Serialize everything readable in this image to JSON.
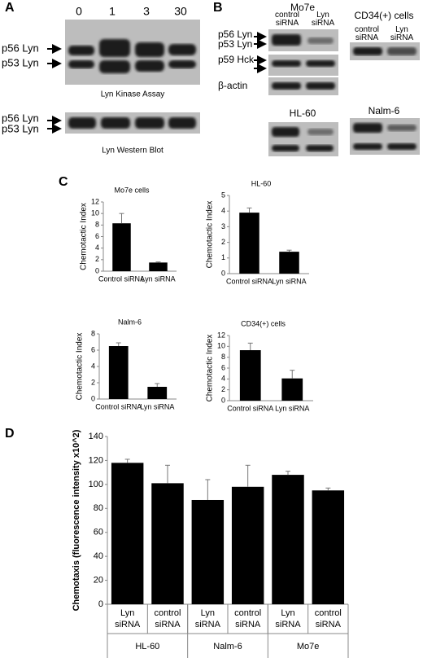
{
  "panel_labels": [
    "A",
    "B",
    "C",
    "D"
  ],
  "blot_a": {
    "lanes": [
      "0",
      "1",
      "3",
      "30"
    ],
    "bands_top": [
      "p56 Lyn",
      "p53 Lyn"
    ],
    "caption_top": "Lyn Kinase Assay",
    "bands_bottom": [
      "p56 Lyn",
      "p53 Lyn"
    ],
    "caption_bottom": "Lyn Western Blot"
  },
  "blot_b": {
    "title_left": "Mo7e",
    "lanes_left": [
      "control siRNA",
      "Lyn siRNA"
    ],
    "title_right": "CD34(+) cells",
    "lanes_right": [
      "control siRNA",
      "Lyn siRNA"
    ],
    "bands": [
      "p56 Lyn",
      "p53 Lyn",
      "p59 Hck",
      "β-actin"
    ],
    "title_hl60": "HL-60",
    "title_nalm6": "Nalm-6"
  },
  "chart_data": [
    {
      "type": "bar",
      "title": "Mo7e cells",
      "y_label": "Chemotactic Index",
      "categories": [
        "Control siRNA",
        "Lyn siRNA"
      ],
      "values": [
        8.3,
        1.5
      ],
      "errors": [
        1.7,
        0.1
      ],
      "color": "#000000",
      "ylim": [
        0,
        12
      ],
      "yticks": [
        0,
        2,
        4,
        6,
        8,
        10,
        12
      ]
    },
    {
      "type": "bar",
      "title": "HL-60",
      "y_label": "Chemotactic Index",
      "categories": [
        "Control siRNA",
        "Lyn siRNA"
      ],
      "values": [
        3.9,
        1.4
      ],
      "errors": [
        0.3,
        0.1
      ],
      "color": "#000000",
      "ylim": [
        0,
        5
      ],
      "yticks": [
        0,
        1,
        2,
        3,
        4,
        5
      ]
    },
    {
      "type": "bar",
      "title": "Nalm-6",
      "y_label": "Chemotactic Index",
      "categories": [
        "Control siRNA",
        "Lyn siRNA"
      ],
      "values": [
        6.5,
        1.5
      ],
      "errors": [
        0.4,
        0.4
      ],
      "color": "#000000",
      "ylim": [
        0,
        8
      ],
      "yticks": [
        0,
        2,
        4,
        6,
        8
      ]
    },
    {
      "type": "bar",
      "title": "CD34(+) cells",
      "y_label": "Chemotactic Index",
      "categories": [
        "Control siRNA",
        "Lyn siRNA"
      ],
      "values": [
        9.3,
        4.1
      ],
      "errors": [
        1.3,
        1.5
      ],
      "color": "#000000",
      "ylim": [
        0,
        12
      ],
      "yticks": [
        0,
        2,
        4,
        6,
        8,
        10,
        12
      ]
    },
    {
      "type": "bar",
      "y_label": "Chemotaxis (fluorescence intensity x10^2)",
      "categories": [
        "Lyn siRNA",
        "control siRNA",
        "Lyn siRNA",
        "control siRNA",
        "Lyn siRNA",
        "control siRNA"
      ],
      "groups": [
        "HL-60",
        "Nalm-6",
        "Mo7e"
      ],
      "values": [
        118,
        101,
        87,
        98,
        108,
        95
      ],
      "errors": [
        3,
        15,
        17,
        18,
        3,
        2
      ],
      "color": "#000000",
      "ylim": [
        0,
        140
      ],
      "yticks": [
        0,
        20,
        40,
        60,
        80,
        100,
        120,
        140
      ]
    }
  ]
}
